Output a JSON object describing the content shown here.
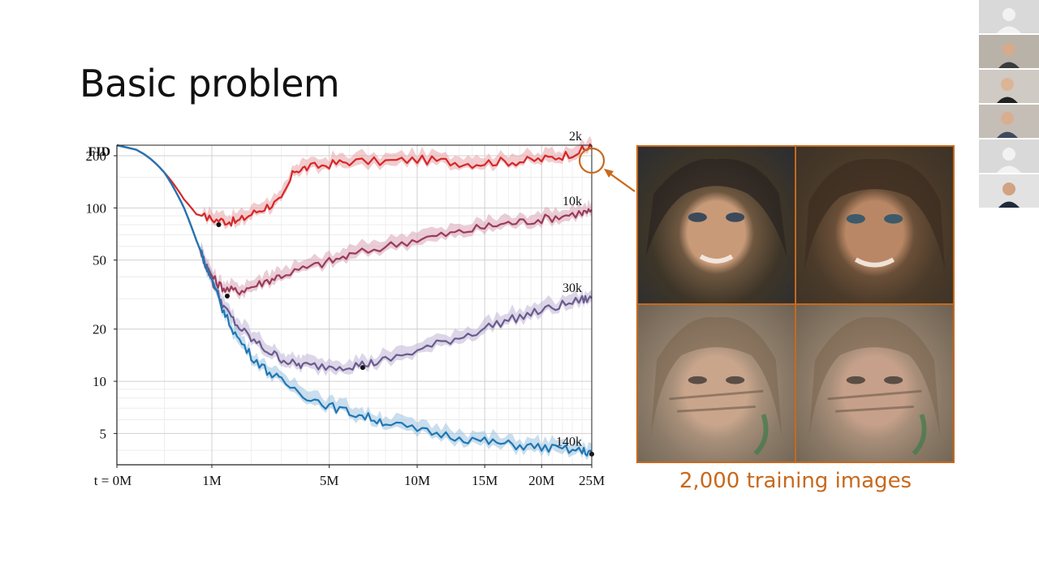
{
  "slide": {
    "title": "Basic problem"
  },
  "chart_data": {
    "type": "line",
    "ylabel": "FID",
    "yscale": "log",
    "ylim": [
      3.3,
      230
    ],
    "y_ticks": [
      5,
      10,
      20,
      50,
      100,
      200
    ],
    "xscale": "sqrt",
    "xlim": [
      0,
      25
    ],
    "x_ticks": [
      0,
      1,
      5,
      10,
      15,
      20,
      25
    ],
    "x_tick_labels": [
      "t = 0M",
      "1M",
      "5M",
      "10M",
      "15M",
      "20M",
      "25M"
    ],
    "grid": true,
    "series": [
      {
        "name": "2k",
        "color": "#d62728",
        "band_color": "#e8a3a8",
        "x": [
          0,
          0.25,
          0.5,
          0.7,
          1.0,
          1.3,
          1.6,
          2.0,
          2.5,
          3.0,
          3.5,
          4.0,
          5.0,
          6.0,
          8.0,
          10.0,
          12.0,
          14.0,
          16.0,
          18.0,
          20.0,
          22.0,
          24.0,
          25.0
        ],
        "y": [
          230,
          160,
          112,
          92,
          86,
          84,
          83,
          92,
          102,
          110,
          165,
          170,
          178,
          185,
          185,
          190,
          185,
          180,
          185,
          185,
          190,
          200,
          215,
          225
        ],
        "best": {
          "x": 1.15,
          "y": 80
        }
      },
      {
        "name": "10k",
        "color": "#9b3b5a",
        "band_color": "#d9a4b4",
        "x": [
          0,
          0.25,
          0.5,
          0.7,
          0.9,
          1.1,
          1.3,
          1.6,
          2.0,
          2.5,
          3.0,
          4.0,
          5.0,
          6.0,
          8.0,
          10.0,
          12.0,
          14.0,
          16.0,
          18.0,
          20.0,
          22.0,
          24.0,
          25.0
        ],
        "y": [
          230,
          160,
          100,
          65,
          45,
          37,
          34,
          33,
          35,
          38,
          41,
          45,
          49,
          53,
          60,
          66,
          70,
          75,
          80,
          83,
          86,
          90,
          94,
          95
        ],
        "best": {
          "x": 1.35,
          "y": 31
        }
      },
      {
        "name": "30k",
        "color": "#6b5b8e",
        "band_color": "#bfb5d6",
        "x": [
          0,
          0.25,
          0.5,
          0.7,
          0.9,
          1.1,
          1.3,
          1.6,
          2.0,
          2.5,
          3.0,
          3.5,
          4.0,
          5.0,
          6.0,
          7.0,
          8.0,
          10.0,
          12.0,
          14.0,
          16.0,
          18.0,
          20.0,
          22.0,
          24.0,
          25.0
        ],
        "y": [
          230,
          160,
          100,
          65,
          45,
          33,
          26,
          21,
          17.5,
          15,
          13.5,
          12.5,
          12.3,
          12.2,
          12.3,
          12.6,
          13.2,
          15,
          17,
          19,
          21.5,
          23.5,
          25.5,
          27.5,
          29.5,
          30
        ],
        "best": {
          "x": 6.7,
          "y": 12
        }
      },
      {
        "name": "140k",
        "color": "#1f77b4",
        "band_color": "#9cc3e0",
        "x": [
          0,
          0.25,
          0.5,
          0.7,
          0.9,
          1.1,
          1.3,
          1.6,
          2.0,
          2.5,
          3.0,
          4.0,
          5.0,
          6.0,
          7.0,
          8.0,
          10.0,
          12.0,
          14.0,
          16.0,
          18.0,
          20.0,
          22.0,
          24.0,
          25.0
        ],
        "y": [
          230,
          160,
          100,
          65,
          45,
          32,
          24,
          18,
          14,
          11.5,
          10,
          8.2,
          7.2,
          6.6,
          6.2,
          5.8,
          5.2,
          4.9,
          4.6,
          4.4,
          4.25,
          4.15,
          4.05,
          3.95,
          3.9
        ],
        "best": {
          "x": 25,
          "y": 3.8
        }
      }
    ],
    "annotation": "2k curve end highlighted and linked to generated samples"
  },
  "samples": {
    "caption": "2,000 training images",
    "accent_color": "#c8691c",
    "images": [
      "generated-face-1",
      "generated-face-2",
      "generated-face-3",
      "generated-face-4"
    ]
  },
  "participants": {
    "tiles": [
      "avatar-placeholder",
      "video-woman-headset",
      "video-man-headphones",
      "video-man-glasses",
      "avatar-placeholder",
      "video-man-dark-hair"
    ]
  }
}
